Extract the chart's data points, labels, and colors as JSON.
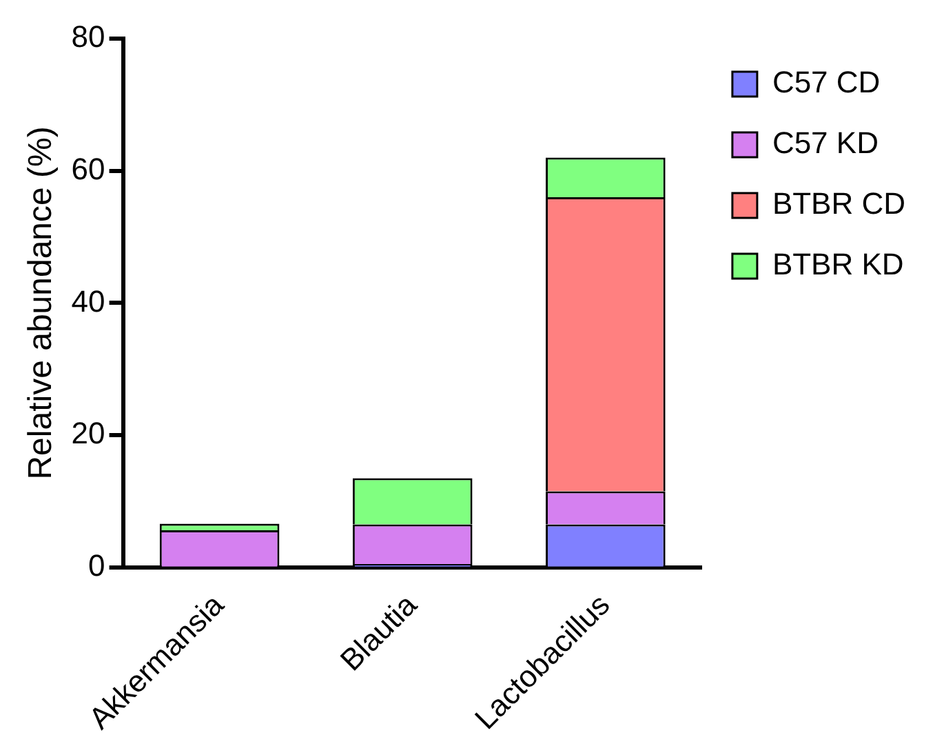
{
  "chart_data": {
    "type": "bar",
    "stacked": true,
    "ylabel": "Relative abundance (%)",
    "categories": [
      "Akkermansia",
      "Blautia",
      "Lactobacillus"
    ],
    "series": [
      {
        "name": "C57 CD",
        "color": "#8080ff",
        "values": [
          0,
          0.5,
          6.5
        ]
      },
      {
        "name": "C57 KD",
        "color": "#d580f0",
        "values": [
          5.6,
          6,
          5
        ]
      },
      {
        "name": "BTBR CD",
        "color": "#ff8080",
        "values": [
          0,
          0,
          44.5
        ]
      },
      {
        "name": "BTBR KD",
        "color": "#80ff80",
        "values": [
          1,
          7,
          6
        ]
      }
    ],
    "ylim": [
      0,
      80
    ],
    "yticks": [
      0,
      20,
      40,
      60,
      80
    ],
    "grid": false,
    "legend": "right"
  }
}
